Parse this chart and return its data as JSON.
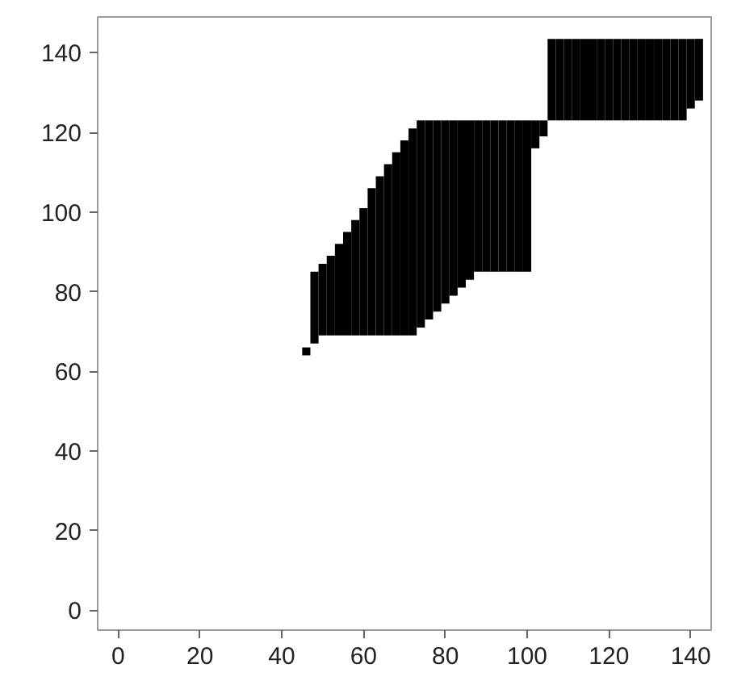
{
  "chart_data": {
    "type": "bar",
    "xlim": [
      -5,
      145
    ],
    "ylim": [
      -5,
      149
    ],
    "xticks": [
      0,
      20,
      40,
      60,
      80,
      100,
      120,
      140
    ],
    "yticks": [
      0,
      20,
      40,
      60,
      80,
      100,
      120,
      140
    ],
    "grid": false,
    "color": "#000000",
    "x": [
      46,
      48,
      50,
      52,
      54,
      56,
      58,
      60,
      62,
      64,
      66,
      68,
      70,
      72,
      74,
      76,
      78,
      80,
      82,
      84,
      86,
      88,
      90,
      92,
      94,
      96,
      98,
      100,
      102,
      104,
      106,
      108,
      110,
      112,
      114,
      116,
      118,
      120,
      122,
      124,
      126,
      128,
      130,
      132,
      134,
      136,
      138,
      140,
      142
    ],
    "base": [
      64,
      67,
      69,
      69,
      69,
      69,
      69,
      69,
      69,
      69,
      69,
      69,
      69,
      69,
      71,
      73,
      75,
      77,
      79,
      81,
      83,
      85,
      85,
      85,
      85,
      85,
      85,
      85,
      116,
      119,
      123,
      123,
      123,
      123,
      123,
      123,
      123,
      123,
      123,
      123,
      123,
      123,
      123,
      123,
      123,
      123,
      123,
      126,
      128
    ],
    "values": [
      2,
      18,
      18,
      20,
      23,
      26,
      29,
      32,
      37,
      40,
      43,
      46,
      49,
      52,
      52,
      50,
      48,
      46,
      44,
      42,
      40,
      38,
      38,
      38,
      38,
      38,
      38,
      38,
      7,
      4,
      20.5,
      20.5,
      20.5,
      20.5,
      20.5,
      20.5,
      20.5,
      20.5,
      20.5,
      20.5,
      20.5,
      20.5,
      20.5,
      20.5,
      20.5,
      20.5,
      20.5,
      17.5,
      15.5
    ]
  }
}
